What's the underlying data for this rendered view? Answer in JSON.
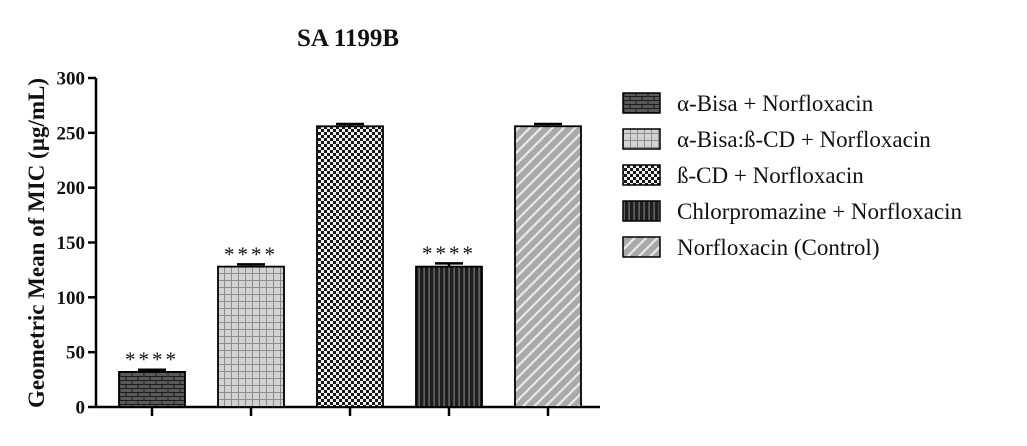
{
  "chart_data": {
    "type": "bar",
    "title": "SA 1199B",
    "xlabel": "",
    "ylabel": "Geometric Mean of MIC (µg/mL)",
    "ylim": [
      0,
      300
    ],
    "yticks": [
      "0",
      "50",
      "100",
      "150",
      "200",
      "250",
      "300"
    ],
    "grid": false,
    "legend_position": "right",
    "categories": [
      "α-Bisa + Norfloxacin",
      "α-Bisa:ß-CD + Norfloxacin",
      "ß-CD + Norfloxacin",
      "Chlorpromazine + Norfloxacin",
      "Norfloxacin (Control)"
    ],
    "values": [
      32,
      128,
      256,
      128,
      256
    ],
    "error": [
      2,
      2,
      2,
      3,
      2
    ],
    "significance": [
      "****",
      "****",
      "",
      "****",
      ""
    ],
    "patterns": [
      "brick",
      "grid",
      "checker",
      "vertical-stripes",
      "diagonal-stripes"
    ],
    "colors": [
      "#595959",
      "#c8c8c8",
      "#2e2e2e",
      "#2b2b2b",
      "#b5b5b5"
    ]
  }
}
